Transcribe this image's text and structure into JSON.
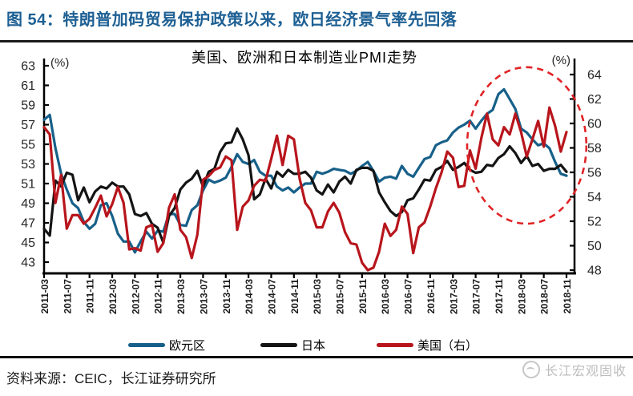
{
  "header": {
    "title": "图 54：特朗普加码贸易保护政策以来，欧日经济景气率先回落",
    "title_color": "#1e6094"
  },
  "footer": {
    "source": "资料来源：CEIC，长江证券研究所",
    "watermark": "长江宏观固收",
    "watermark_logo": "changjiang-circle-logo"
  },
  "chart_data": {
    "type": "line",
    "title": "美国、欧洲和日本制造业PMI走势",
    "unit_left": "(%)",
    "unit_right": "(%)",
    "x_start": "2011-03",
    "x_end": "2018-11",
    "x_frequency": "monthly",
    "x_tick_labels": [
      "2011-03",
      "2011-07",
      "2011-11",
      "2012-03",
      "2012-07",
      "2012-11",
      "2013-03",
      "2013-07",
      "2013-11",
      "2014-03",
      "2014-07",
      "2014-11",
      "2015-03",
      "2015-07",
      "2015-11",
      "2016-03",
      "2016-07",
      "2016-11",
      "2017-03",
      "2017-07",
      "2017-11",
      "2018-03",
      "2018-07",
      "2018-11"
    ],
    "left_axis": {
      "min": 43,
      "max": 63,
      "step": 2
    },
    "right_axis": {
      "min": 48,
      "max": 64,
      "step": 2
    },
    "grid": false,
    "legend_position": "bottom",
    "series": [
      {
        "name": "欧元区",
        "axis": "left",
        "color": "#176089",
        "values": [
          57.5,
          58.0,
          54.6,
          52.0,
          50.4,
          49.0,
          48.5,
          47.1,
          46.4,
          46.9,
          48.8,
          49.0,
          47.7,
          45.9,
          45.1,
          45.1,
          44.0,
          45.1,
          46.1,
          45.4,
          46.2,
          46.1,
          47.9,
          47.9,
          46.8,
          46.7,
          48.3,
          48.8,
          50.3,
          51.4,
          51.1,
          51.3,
          51.6,
          52.7,
          54.0,
          53.2,
          53.0,
          53.4,
          52.2,
          51.8,
          51.8,
          50.7,
          50.3,
          50.6,
          50.1,
          50.6,
          51.0,
          51.0,
          52.2,
          52.0,
          52.2,
          52.5,
          52.4,
          52.3,
          52.0,
          52.3,
          52.8,
          53.2,
          52.3,
          51.2,
          51.6,
          51.7,
          51.5,
          52.8,
          52.0,
          51.7,
          52.6,
          53.5,
          53.7,
          54.9,
          55.2,
          55.4,
          56.2,
          56.7,
          57.0,
          57.4,
          56.6,
          57.4,
          58.1,
          58.5,
          60.1,
          60.6,
          59.6,
          58.6,
          56.6,
          56.2,
          55.5,
          54.9,
          55.1,
          54.6,
          53.2,
          52.0,
          51.8
        ]
      },
      {
        "name": "日本",
        "axis": "left",
        "color": "#141414",
        "values": [
          46.4,
          45.7,
          51.3,
          50.7,
          52.1,
          51.9,
          49.3,
          50.6,
          49.1,
          50.2,
          50.7,
          50.5,
          51.1,
          50.7,
          50.7,
          49.9,
          47.9,
          47.7,
          48.0,
          46.9,
          46.5,
          45.0,
          47.7,
          48.5,
          50.4,
          51.1,
          51.5,
          52.3,
          50.7,
          52.2,
          52.5,
          54.2,
          55.1,
          55.2,
          56.6,
          55.5,
          53.9,
          49.4,
          49.9,
          51.5,
          50.5,
          52.2,
          51.7,
          52.4,
          52.0,
          52.0,
          52.2,
          51.6,
          50.3,
          49.9,
          50.9,
          50.1,
          51.2,
          51.7,
          51.0,
          52.4,
          52.6,
          52.6,
          52.3,
          50.1,
          49.1,
          48.2,
          47.7,
          48.1,
          49.3,
          49.5,
          50.4,
          51.4,
          51.3,
          52.4,
          52.7,
          53.3,
          52.4,
          52.7,
          53.1,
          52.4,
          52.1,
          52.2,
          52.9,
          52.8,
          53.6,
          54.0,
          54.8,
          54.1,
          53.1,
          53.8,
          52.8,
          53.0,
          52.3,
          52.5,
          52.5,
          52.9,
          52.2
        ]
      },
      {
        "name": "美国（右）",
        "axis": "right",
        "color": "#b8151c",
        "values": [
          59.7,
          59.1,
          53.5,
          55.8,
          51.4,
          52.5,
          52.5,
          51.8,
          52.2,
          53.1,
          54.1,
          52.4,
          53.4,
          54.8,
          53.5,
          49.7,
          49.8,
          49.6,
          51.5,
          51.7,
          49.5,
          50.2,
          53.1,
          54.2,
          51.3,
          50.7,
          49.0,
          50.9,
          55.4,
          55.7,
          56.2,
          56.4,
          57.3,
          57.0,
          51.3,
          53.2,
          53.7,
          54.9,
          55.4,
          55.3,
          57.1,
          59.0,
          56.6,
          59.0,
          58.7,
          55.5,
          53.5,
          52.9,
          51.5,
          51.5,
          52.8,
          53.5,
          52.7,
          51.1,
          50.2,
          50.1,
          48.6,
          48.0,
          48.2,
          49.5,
          51.8,
          50.8,
          51.3,
          53.2,
          52.6,
          49.4,
          51.5,
          51.9,
          53.2,
          54.7,
          56.0,
          57.7,
          57.2,
          54.8,
          54.9,
          57.8,
          56.3,
          58.8,
          60.8,
          58.7,
          58.2,
          59.7,
          59.1,
          60.8,
          59.3,
          57.3,
          58.7,
          60.2,
          58.1,
          61.3,
          59.8,
          57.7,
          59.3
        ]
      }
    ],
    "annotation": {
      "type": "dashed-ellipse",
      "color": "#e02326",
      "month_center": 85,
      "month_radius": 10.5,
      "value_center_right": 58.2,
      "value_radius_right": 6.4
    }
  }
}
